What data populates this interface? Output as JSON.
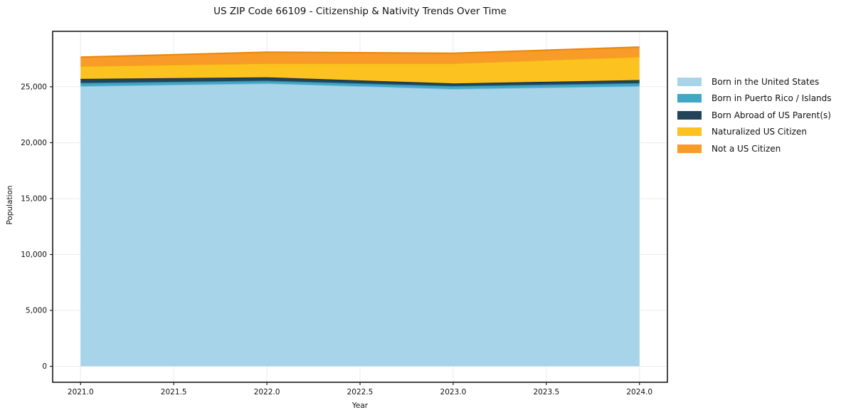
{
  "chart_data": {
    "type": "area",
    "stacked": true,
    "title": "US ZIP Code 66109 - Citizenship & Nativity Trends Over Time",
    "xlabel": "Year",
    "ylabel": "Population",
    "x": [
      2021,
      2022,
      2023,
      2024
    ],
    "series": [
      {
        "name": "Born in the United States",
        "values": [
          25050,
          25300,
          24800,
          25050
        ],
        "fill": "#A7D4E8",
        "edge": "#8CC3DD"
      },
      {
        "name": "Born in Puerto Rico / Islands",
        "values": [
          300,
          250,
          270,
          280
        ],
        "fill": "#41A7C5",
        "edge": "#2D89A0"
      },
      {
        "name": "Born Abroad of US Parent(s)",
        "values": [
          350,
          300,
          230,
          270
        ],
        "fill": "#21445B",
        "edge": "#152F40"
      },
      {
        "name": "Naturalized US Citizen",
        "values": [
          1150,
          1250,
          1800,
          2100
        ],
        "fill": "#FCC320",
        "edge": "#F2A714"
      },
      {
        "name": "Not a US Citizen",
        "values": [
          800,
          1000,
          900,
          850
        ],
        "fill": "#F89B28",
        "edge": "#E8860D"
      }
    ],
    "xticks": {
      "values": [
        2021,
        2021.5,
        2022,
        2022.5,
        2023,
        2023.5,
        2024
      ],
      "labels": [
        "2021.0",
        "2021.5",
        "2022.0",
        "2022.5",
        "2023.0",
        "2023.5",
        "2024.0"
      ]
    },
    "yticks": {
      "values": [
        0,
        5000,
        10000,
        15000,
        20000,
        25000
      ],
      "labels": [
        "0",
        "5,000",
        "10,000",
        "15,000",
        "20,000",
        "25,000"
      ]
    },
    "xlim": [
      2020.85,
      2024.15
    ],
    "ylim": [
      -1430,
      29960
    ],
    "grid": true,
    "legend_position": "right-outside",
    "colors": {
      "background": "#ffffff",
      "grid": "#ebebeb",
      "frame": "#1a1a1a",
      "tick": "#222222",
      "text": "#111111"
    }
  }
}
